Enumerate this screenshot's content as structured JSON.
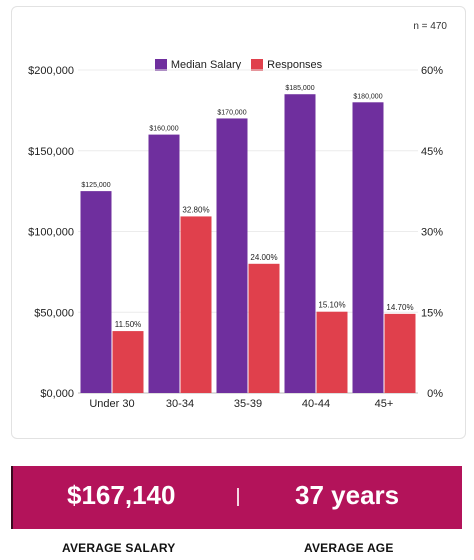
{
  "chart_data": {
    "type": "bar",
    "sample_size_label": "n = 470",
    "categories": [
      "Under 30",
      "30-34",
      "35-39",
      "40-44",
      "45+"
    ],
    "series": [
      {
        "name": "Median Salary",
        "axis": "left",
        "color": "#6f2f9e",
        "values": [
          125000,
          160000,
          170000,
          185000,
          180000
        ],
        "labels": [
          "$125,000",
          "$160,000",
          "$170,000",
          "$185,000",
          "$180,000"
        ]
      },
      {
        "name": "Responses",
        "axis": "right",
        "color": "#e0404c",
        "values": [
          11.5,
          32.8,
          24.0,
          15.1,
          14.7
        ],
        "labels": [
          "11.50%",
          "32.80%",
          "24.00%",
          "15.10%",
          "14.70%"
        ]
      }
    ],
    "y_left": {
      "range": [
        0,
        200000
      ],
      "ticks": [
        "$0,000",
        "$50,000",
        "$100,000",
        "$150,000",
        "$200,000"
      ]
    },
    "y_right": {
      "range": [
        0,
        60
      ],
      "ticks": [
        "0%",
        "15%",
        "30%",
        "45%",
        "60%"
      ]
    },
    "grid": true,
    "legend_position": "top-center"
  },
  "summary": {
    "average_salary_value": "$167,140",
    "average_salary_label": "AVERAGE SALARY",
    "average_age_value": "37 years",
    "average_age_label": "AVERAGE AGE"
  }
}
